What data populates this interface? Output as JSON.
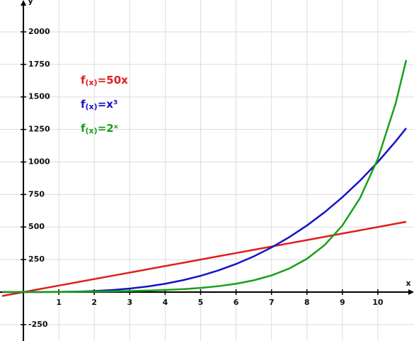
{
  "chart_data": {
    "type": "line",
    "x_label": "x",
    "y_label": "y",
    "x": [
      -0.6,
      0,
      0.5,
      1,
      1.5,
      2,
      2.5,
      3,
      3.5,
      4,
      4.5,
      5,
      5.5,
      6,
      6.5,
      7,
      7.5,
      8,
      8.5,
      9,
      9.5,
      10,
      10.5,
      10.8
    ],
    "series": [
      {
        "name": "f(x)=50x",
        "color": "#e01e1e",
        "values": [
          -30,
          0,
          25,
          50,
          75,
          100,
          125,
          150,
          175,
          200,
          225,
          250,
          275,
          300,
          325,
          350,
          375,
          400,
          425,
          450,
          475,
          500,
          525,
          540
        ]
      },
      {
        "name": "f(x)=x³",
        "color": "#1414c8",
        "values": [
          -0.216,
          0,
          0.125,
          1,
          3.375,
          8,
          15.625,
          27,
          42.875,
          64,
          91.125,
          125,
          166.375,
          216,
          274.625,
          343,
          421.875,
          512,
          614.125,
          729,
          857.375,
          1000,
          1157.625,
          1259.712
        ]
      },
      {
        "name": "f(x)=2ˣ",
        "color": "#18a018",
        "values": [
          0.66,
          1,
          1.414,
          2,
          2.828,
          4,
          5.657,
          8,
          11.314,
          16,
          22.627,
          32,
          45.255,
          64,
          90.51,
          128,
          181.019,
          256,
          362.039,
          512,
          724.077,
          1024,
          1448.155,
          1782.88
        ]
      }
    ],
    "xlim": [
      -0.66,
      11.02
    ],
    "ylim": [
      -376,
      2245
    ],
    "xticks": [
      1,
      2,
      3,
      4,
      5,
      6,
      7,
      8,
      9,
      10
    ],
    "yticks": [
      -250,
      250,
      500,
      750,
      1000,
      1250,
      1500,
      1750,
      2000
    ],
    "grid": true
  }
}
